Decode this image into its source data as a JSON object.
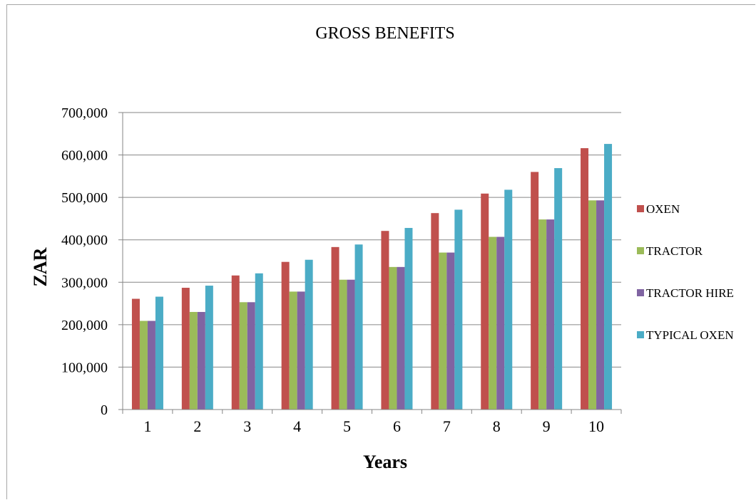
{
  "chart_data": {
    "type": "bar",
    "title": "GROSS BENEFITS",
    "xlabel": "Years",
    "ylabel": "ZAR",
    "categories": [
      "1",
      "2",
      "3",
      "4",
      "5",
      "6",
      "7",
      "8",
      "9",
      "10"
    ],
    "ylim": [
      0,
      700000
    ],
    "yticks": [
      0,
      100000,
      200000,
      300000,
      400000,
      500000,
      600000,
      700000
    ],
    "ytick_labels": [
      "0",
      "100,000",
      "200,000",
      "300,000",
      "400,000",
      "500,000",
      "600,000",
      "700,000"
    ],
    "grid": true,
    "legend_position": "right",
    "series": [
      {
        "name": "OXEN",
        "color": "#c0504d",
        "values": [
          261000,
          287000,
          316000,
          348000,
          383000,
          421000,
          463000,
          509000,
          560000,
          616000
        ]
      },
      {
        "name": "TRACTOR",
        "color": "#9bbb59",
        "values": [
          209000,
          230000,
          253000,
          278000,
          306000,
          336000,
          370000,
          407000,
          448000,
          493000
        ]
      },
      {
        "name": "TRACTOR HIRE",
        "color": "#8064a2",
        "values": [
          209000,
          230000,
          253000,
          278000,
          306000,
          336000,
          370000,
          407000,
          448000,
          493000
        ]
      },
      {
        "name": "TYPICAL OXEN",
        "color": "#4bacc6",
        "values": [
          266000,
          292000,
          321000,
          353000,
          389000,
          428000,
          471000,
          518000,
          569000,
          626000
        ]
      }
    ]
  }
}
